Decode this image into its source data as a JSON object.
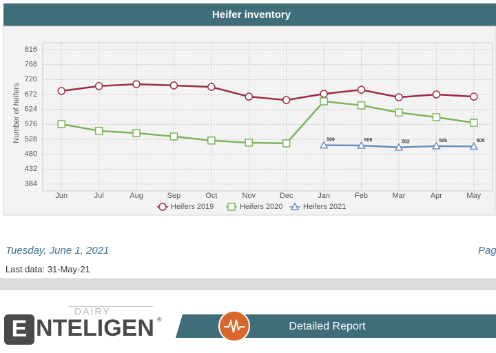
{
  "chart_data": {
    "type": "line",
    "title": "Heifer inventory",
    "ylabel": "Number of heifers",
    "categories": [
      "Jun",
      "Jul",
      "Aug",
      "Sep",
      "Oct",
      "Nov",
      "Dec",
      "Jan",
      "Feb",
      "Mar",
      "Apr",
      "May"
    ],
    "series": [
      {
        "name": "Heifers 2019",
        "color": "#9b2c45",
        "marker": "circle",
        "values": [
          683,
          699,
          705,
          701,
          696,
          665,
          654,
          674,
          687,
          663,
          672,
          665
        ]
      },
      {
        "name": "Heifers 2020",
        "color": "#7cb45a",
        "marker": "square",
        "values": [
          577,
          555,
          548,
          537,
          524,
          517,
          515,
          650,
          637,
          614,
          599,
          581
        ]
      },
      {
        "name": "Heifers 2021",
        "color": "#6a8fc0",
        "marker": "triangle",
        "values": [
          null,
          null,
          null,
          null,
          null,
          null,
          null,
          509,
          508,
          502,
          506,
          505
        ],
        "data_labels": true
      }
    ],
    "ylim": [
      384,
      816
    ],
    "yticks": [
      384,
      432,
      480,
      528,
      576,
      624,
      672,
      720,
      768,
      816
    ],
    "grid": true,
    "legend": "bottom"
  },
  "page": {
    "date": "Tuesday, June 1, 2021",
    "page_label": "Pag",
    "last_data": "Last data: 31-May-21",
    "logo_small": "DAIRY",
    "logo_first": "E",
    "logo_rest": "NTELIGEN",
    "logo_mark": "®",
    "report_title": "Detailed Report"
  }
}
